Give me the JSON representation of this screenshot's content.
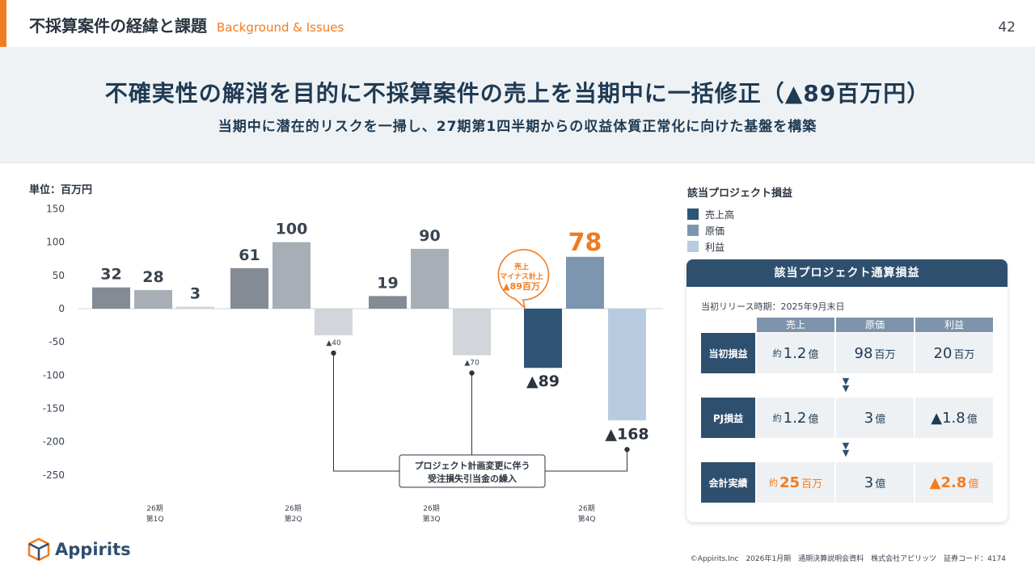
{
  "header": {
    "title": "不採算案件の経緯と課題",
    "title_en": "Background & Issues",
    "page_number": "42"
  },
  "banner": {
    "title": "不確実性の解消を目的に不採算案件の売上を当期中に一括修正（▲89百万円）",
    "subtitle": "当期中に潜在的リスクを一掃し、27期第1四半期からの収益体質正常化に向けた基盤を構築"
  },
  "chart_data": {
    "type": "bar",
    "unit_label": "単位：百万円",
    "categories": [
      [
        "26期",
        "第1Q"
      ],
      [
        "26期",
        "第2Q"
      ],
      [
        "26期",
        "第3Q"
      ],
      [
        "26期",
        "第4Q"
      ]
    ],
    "series": [
      {
        "name": "売上高",
        "values": [
          32,
          61,
          19,
          -89
        ],
        "labels": [
          "32",
          "61",
          "19",
          "▲89"
        ]
      },
      {
        "name": "原価",
        "values": [
          28,
          100,
          90,
          78
        ],
        "labels": [
          "28",
          "100",
          "90",
          "78"
        ]
      },
      {
        "name": "利益",
        "values": [
          3,
          -40,
          -70,
          -168
        ],
        "labels": [
          "3",
          "▲40",
          "▲70",
          "▲168"
        ]
      }
    ],
    "ylim": [
      -250,
      150
    ],
    "yticks": [
      150,
      100,
      50,
      0,
      -50,
      -100,
      -150,
      -200,
      -250
    ],
    "callout": [
      "売上",
      "マイナス計上",
      "▲89百万"
    ],
    "annotation": [
      "プロジェクト計画変更に伴う",
      "受注損失引当金の繰入"
    ]
  },
  "legend": {
    "title": "該当プロジェクト損益",
    "items": [
      "売上高",
      "原価",
      "利益"
    ]
  },
  "colors": {
    "accent": "#f07c21",
    "navy": "#2f4f6f",
    "bar_sales": "#848b94",
    "bar_cost": "#a8aeb6",
    "bar_profit": "#d2d5d9",
    "q4_sales": "#2f5476",
    "q4_cost": "#7d96b0",
    "q4_profit": "#b9cbe0"
  },
  "panel": {
    "title": "該当プロジェクト通算損益",
    "release": "当初リリース時期：2025年9月末日",
    "columns": [
      "売上",
      "原価",
      "利益"
    ],
    "rows": [
      {
        "label": "当初損益",
        "cells": [
          {
            "pre": "約",
            "num": "1.2",
            "unit": "億"
          },
          {
            "pre": "",
            "num": "98",
            "unit": "百万"
          },
          {
            "pre": "",
            "num": "20",
            "unit": "百万"
          }
        ]
      },
      {
        "label": "PJ損益",
        "cells": [
          {
            "pre": "約",
            "num": "1.2",
            "unit": "億"
          },
          {
            "pre": "",
            "num": "3",
            "unit": "億"
          },
          {
            "pre": "",
            "num": "▲1.8",
            "unit": "億"
          }
        ]
      },
      {
        "label": "会計実績",
        "cells": [
          {
            "pre": "約",
            "num": "25",
            "unit": "百万"
          },
          {
            "pre": "",
            "num": "3",
            "unit": "億"
          },
          {
            "pre": "",
            "num": "▲2.8",
            "unit": "億"
          }
        ]
      }
    ]
  },
  "logo": {
    "text": "Appirits"
  },
  "footer": "©Appirits.Inc　2026年1月期　通期決算説明会資料　株式会社アピリッツ　証券コード：4174"
}
